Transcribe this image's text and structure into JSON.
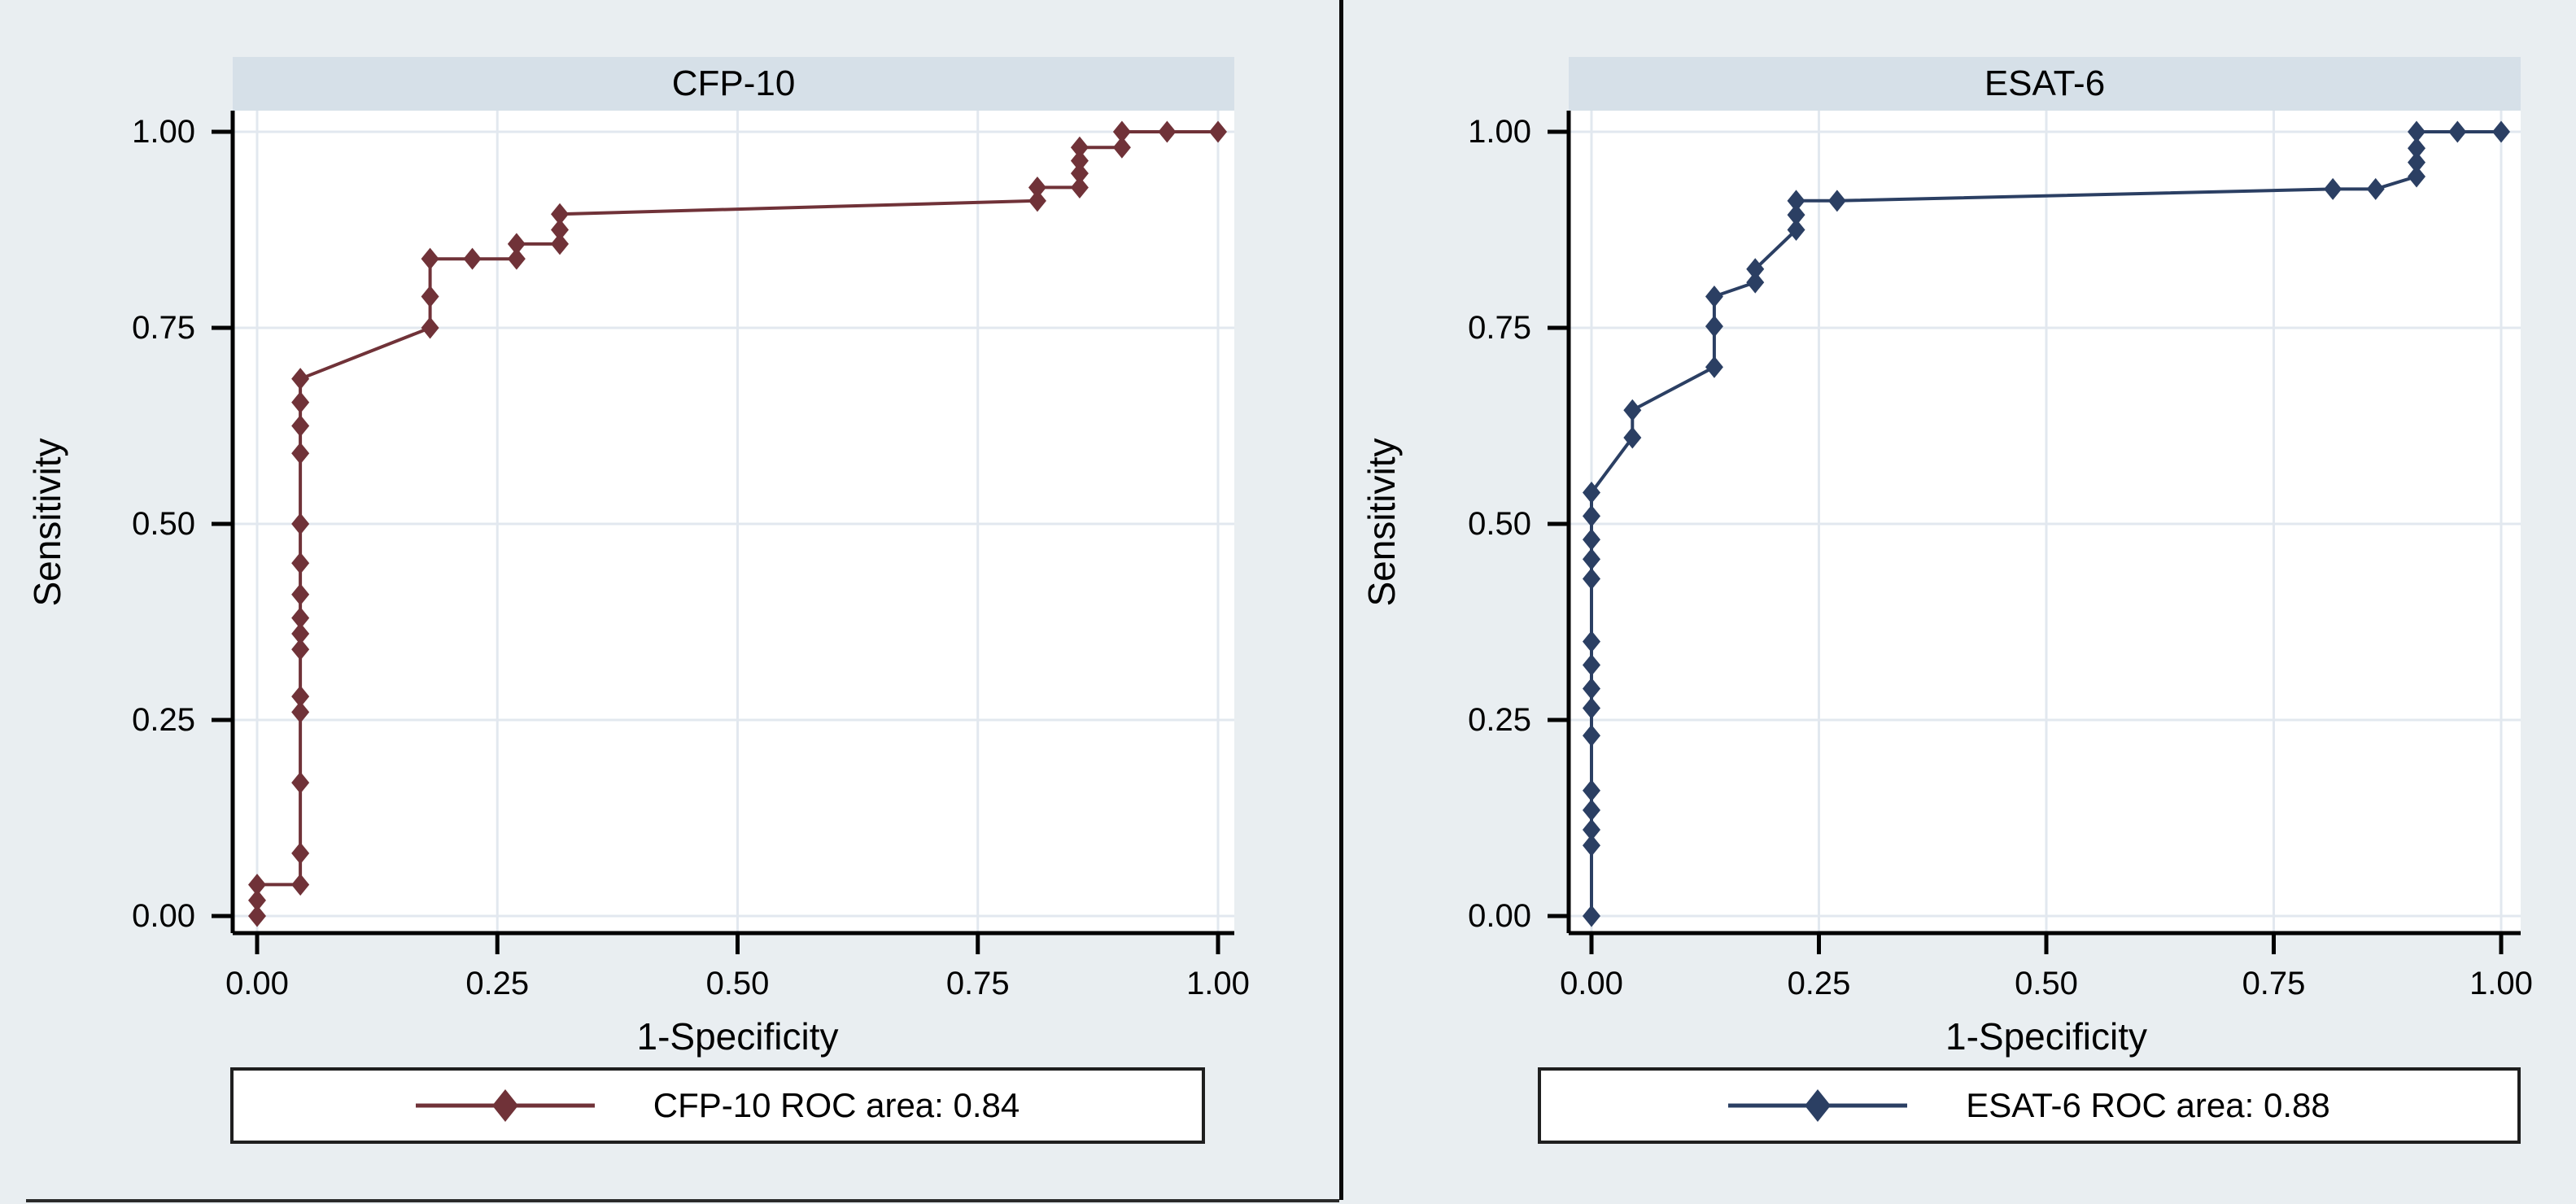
{
  "figure": {
    "background_color": "#e9eef1",
    "banner_color": "#d6e0e8",
    "grid_color": "#e2e8ef",
    "axis_color": "#000000",
    "legend_border_color": "#1f1f1f"
  },
  "chart_data": [
    {
      "type": "line",
      "title": "CFP-10",
      "xlabel": "1-Specificity",
      "ylabel": "Sensitivity",
      "x_ticks": [
        "0.00",
        "0.25",
        "0.50",
        "0.75",
        "1.00"
      ],
      "y_ticks": [
        "0.00",
        "0.25",
        "0.50",
        "0.75",
        "1.00"
      ],
      "xlim": [
        0,
        1
      ],
      "ylim": [
        0,
        1
      ],
      "grid": true,
      "auc": 0.84,
      "legend": {
        "label": "CFP-10 ROC area: 0.84",
        "position": "bottom"
      },
      "series": [
        {
          "name": "CFP-10",
          "color": "#703238",
          "marker": "diamond",
          "points": [
            [
              0,
              0
            ],
            [
              0,
              0.02
            ],
            [
              0,
              0.04
            ],
            [
              0.045,
              0.04
            ],
            [
              0.045,
              0.08
            ],
            [
              0.045,
              0.17
            ],
            [
              0.045,
              0.26
            ],
            [
              0.045,
              0.28
            ],
            [
              0.045,
              0.34
            ],
            [
              0.045,
              0.36
            ],
            [
              0.045,
              0.38
            ],
            [
              0.045,
              0.41
            ],
            [
              0.045,
              0.45
            ],
            [
              0.045,
              0.5
            ],
            [
              0.045,
              0.59
            ],
            [
              0.045,
              0.625
            ],
            [
              0.045,
              0.655
            ],
            [
              0.045,
              0.685
            ],
            [
              0.18,
              0.75
            ],
            [
              0.18,
              0.79
            ],
            [
              0.18,
              0.838
            ],
            [
              0.224,
              0.838
            ],
            [
              0.27,
              0.838
            ],
            [
              0.27,
              0.857
            ],
            [
              0.315,
              0.857
            ],
            [
              0.315,
              0.875
            ],
            [
              0.315,
              0.895
            ],
            [
              0.812,
              0.912
            ],
            [
              0.812,
              0.929
            ],
            [
              0.856,
              0.929
            ],
            [
              0.856,
              0.947
            ],
            [
              0.856,
              0.963
            ],
            [
              0.856,
              0.98
            ],
            [
              0.9,
              0.98
            ],
            [
              0.9,
              1
            ],
            [
              0.947,
              1
            ],
            [
              1,
              1
            ]
          ]
        }
      ]
    },
    {
      "type": "line",
      "title": "ESAT-6",
      "xlabel": "1-Specificity",
      "ylabel": "Sensitivity",
      "x_ticks": [
        "0.00",
        "0.25",
        "0.50",
        "0.75",
        "1.00"
      ],
      "y_ticks": [
        "0.00",
        "0.25",
        "0.50",
        "0.75",
        "1.00"
      ],
      "xlim": [
        0,
        1
      ],
      "ylim": [
        0,
        1
      ],
      "grid": true,
      "auc": 0.88,
      "legend": {
        "label": "ESAT-6 ROC area: 0.88",
        "position": "bottom"
      },
      "series": [
        {
          "name": "ESAT-6",
          "color": "#2b3f63",
          "marker": "diamond",
          "points": [
            [
              0,
              0
            ],
            [
              0,
              0.09
            ],
            [
              0,
              0.11
            ],
            [
              0,
              0.135
            ],
            [
              0,
              0.16
            ],
            [
              0,
              0.23
            ],
            [
              0,
              0.265
            ],
            [
              0,
              0.29
            ],
            [
              0,
              0.32
            ],
            [
              0,
              0.35
            ],
            [
              0,
              0.43
            ],
            [
              0,
              0.455
            ],
            [
              0,
              0.48
            ],
            [
              0,
              0.51
            ],
            [
              0,
              0.54
            ],
            [
              0.045,
              0.61
            ],
            [
              0.045,
              0.645
            ],
            [
              0.135,
              0.7
            ],
            [
              0.135,
              0.752
            ],
            [
              0.135,
              0.79
            ],
            [
              0.18,
              0.808
            ],
            [
              0.18,
              0.825
            ],
            [
              0.225,
              0.875
            ],
            [
              0.225,
              0.894
            ],
            [
              0.225,
              0.912
            ],
            [
              0.27,
              0.912
            ],
            [
              0.815,
              0.927
            ],
            [
              0.862,
              0.927
            ],
            [
              0.907,
              0.943
            ],
            [
              0.907,
              0.961
            ],
            [
              0.907,
              0.979
            ],
            [
              0.907,
              1
            ],
            [
              0.952,
              1
            ],
            [
              1,
              1
            ]
          ]
        }
      ]
    }
  ]
}
